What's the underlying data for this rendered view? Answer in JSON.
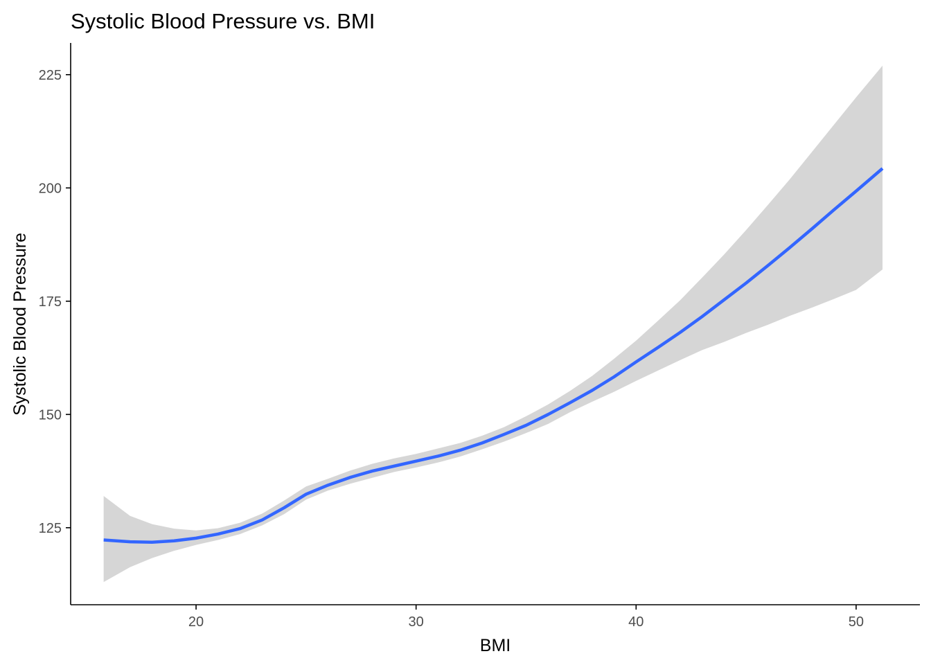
{
  "chart_data": {
    "type": "line",
    "title": "Systolic Blood Pressure vs. BMI",
    "xlabel": "BMI",
    "ylabel": "Systolic Blood Pressure",
    "xlim": [
      14.3,
      52.9
    ],
    "ylim": [
      108,
      232
    ],
    "xticks": [
      20,
      30,
      40,
      50
    ],
    "yticks": [
      125,
      150,
      175,
      200,
      225
    ],
    "grid": false,
    "legend": "none",
    "colors": {
      "line": "#3366FF",
      "ribbon": "#D6D6D6",
      "axis": "#000000",
      "tick_label": "#4D4D4D"
    },
    "series": [
      {
        "x": [
          15.8,
          17.0,
          18.0,
          19.0,
          20.0,
          21.0,
          22.0,
          23.0,
          24.0,
          25.0,
          26.0,
          27.0,
          28.0,
          29.0,
          30.0,
          31.0,
          32.0,
          33.0,
          34.0,
          35.0,
          36.0,
          37.0,
          38.0,
          39.0,
          40.0,
          41.0,
          42.0,
          43.0,
          44.0,
          45.0,
          46.0,
          47.0,
          48.0,
          49.0,
          50.0,
          51.2
        ],
        "y": [
          122.3,
          121.9,
          121.8,
          122.1,
          122.7,
          123.6,
          124.8,
          126.7,
          129.4,
          132.4,
          134.4,
          136.1,
          137.5,
          138.6,
          139.7,
          140.8,
          142.1,
          143.7,
          145.6,
          147.6,
          150.0,
          152.6,
          155.3,
          158.3,
          161.6,
          164.8,
          168.1,
          171.6,
          175.3,
          179.0,
          182.9,
          186.9,
          191.0,
          195.2,
          199.3,
          204.3
        ],
        "y_lower": [
          113.0,
          116.3,
          118.3,
          119.9,
          121.2,
          122.3,
          123.6,
          125.5,
          128.0,
          131.2,
          133.2,
          134.7,
          136.0,
          137.3,
          138.3,
          139.4,
          140.7,
          142.3,
          144.0,
          145.9,
          147.9,
          150.5,
          152.8,
          155.0,
          157.4,
          159.7,
          162.0,
          164.2,
          166.0,
          168.0,
          169.8,
          171.8,
          173.6,
          175.5,
          177.5,
          182.0
        ],
        "y_upper": [
          132.0,
          127.6,
          125.8,
          124.8,
          124.4,
          124.9,
          126.1,
          128.1,
          131.0,
          134.1,
          135.8,
          137.6,
          139.1,
          140.3,
          141.3,
          142.5,
          143.7,
          145.3,
          147.2,
          149.6,
          152.2,
          155.2,
          158.5,
          162.3,
          166.3,
          170.7,
          175.2,
          180.2,
          185.3,
          190.7,
          196.3,
          202.0,
          208.0,
          214.0,
          220.0,
          227.0
        ]
      }
    ]
  }
}
